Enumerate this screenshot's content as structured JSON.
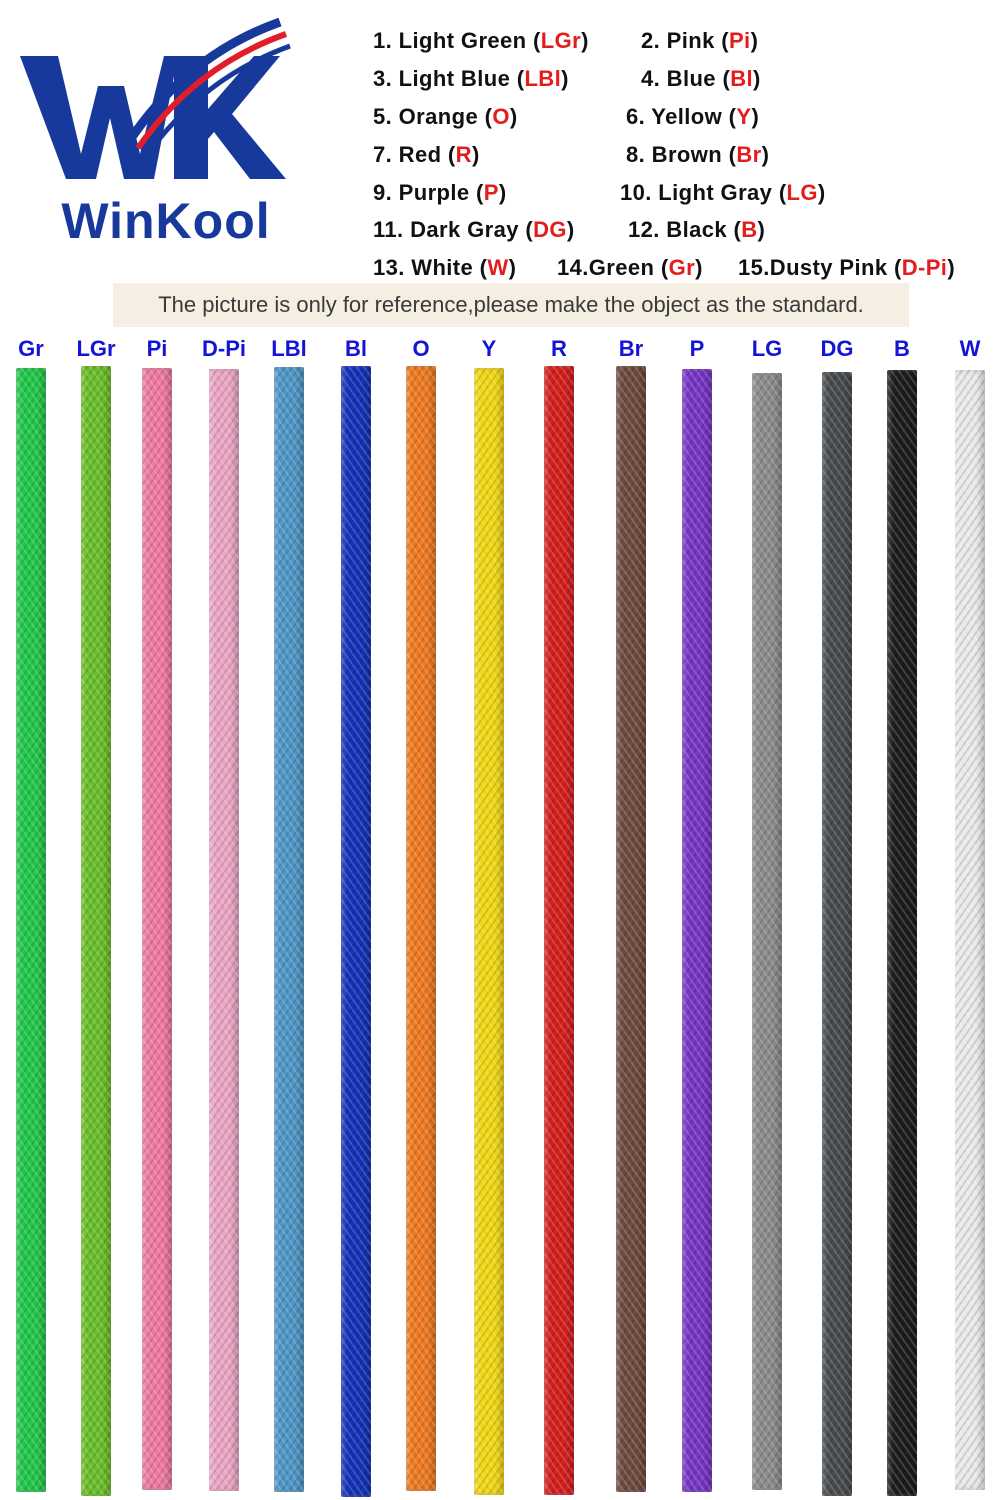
{
  "brand": {
    "name": "WinKool",
    "colors": {
      "blue": "#17399c",
      "red": "#e01e2a"
    }
  },
  "legend": [
    {
      "label": "1. Light Green (",
      "code": "LGr",
      "close": ")"
    },
    {
      "label": "2. Pink (",
      "code": "Pi",
      "close": ")"
    },
    {
      "label": "3. Light Blue (",
      "code": "LBl",
      "close": ")"
    },
    {
      "label": "4. Blue (",
      "code": "Bl",
      "close": ")"
    },
    {
      "label": "5. Orange (",
      "code": "O",
      "close": ")"
    },
    {
      "label": "6. Yellow (",
      "code": "Y",
      "close": ")"
    },
    {
      "label": "7. Red (",
      "code": "R",
      "close": ")"
    },
    {
      "label": "8. Brown (",
      "code": "Br",
      "close": ")"
    },
    {
      "label": "9. Purple (",
      "code": "P",
      "close": ")"
    },
    {
      "label": "10. Light Gray (",
      "code": "LG",
      "close": ")"
    },
    {
      "label": "11. Dark Gray (",
      "code": "DG",
      "close": ")"
    },
    {
      "label": "12. Black (",
      "code": "B",
      "close": ")"
    },
    {
      "label": "13. White (",
      "code": "W",
      "close": ")"
    },
    {
      "label": "14.Green (",
      "code": "Gr",
      "close": ")"
    },
    {
      "label": "15.Dusty Pink (",
      "code": "D-Pi",
      "close": ")"
    }
  ],
  "notice": "The picture is only for reference,please make the object as the standard.",
  "cables": [
    {
      "code": "Gr",
      "color": "#22c84a"
    },
    {
      "code": "LGr",
      "color": "#6abf2a"
    },
    {
      "code": "Pi",
      "color": "#f07aa0"
    },
    {
      "code": "D-Pi",
      "color": "#eda6c6"
    },
    {
      "code": "LBl",
      "color": "#4d97c6"
    },
    {
      "code": "Bl",
      "color": "#1232b8"
    },
    {
      "code": "O",
      "color": "#ef7a22"
    },
    {
      "code": "Y",
      "color": "#f2d814"
    },
    {
      "code": "R",
      "color": "#d61e1e"
    },
    {
      "code": "Br",
      "color": "#6e4a3d"
    },
    {
      "code": "P",
      "color": "#7734c6"
    },
    {
      "code": "LG",
      "color": "#8c8c8c"
    },
    {
      "code": "DG",
      "color": "#474b4e"
    },
    {
      "code": "B",
      "color": "#1c1c1c"
    },
    {
      "code": "W",
      "color": "#e9ebe8"
    }
  ]
}
